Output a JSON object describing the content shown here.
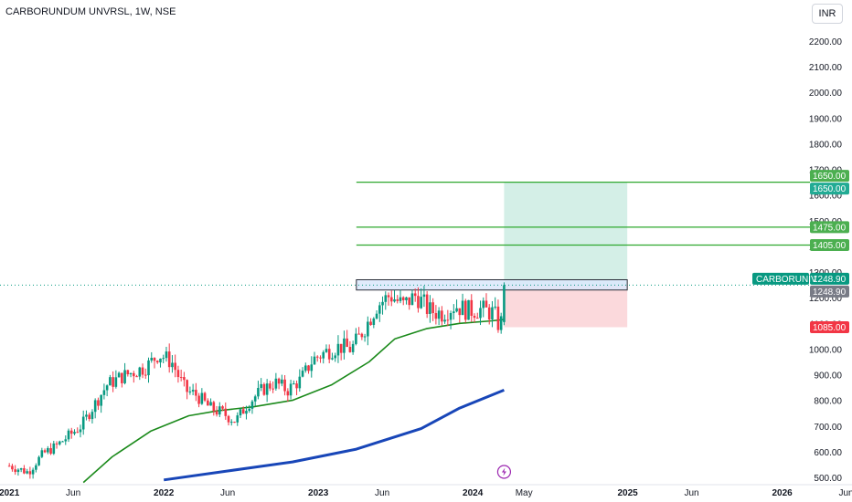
{
  "header": {
    "title": "CARBORUNDUM UNVRSL, 1W, NSE",
    "currency": "INR"
  },
  "chart_data": {
    "type": "candlestick",
    "symbol_tag": "CARBORUNIV",
    "y_axis": {
      "ticks": [
        500,
        600,
        700,
        800,
        900,
        1000,
        1100,
        1200,
        1300,
        1400,
        1500,
        1600,
        1700,
        1800,
        1900,
        2000,
        2100,
        2200
      ],
      "ylim": [
        480,
        2260
      ]
    },
    "x_axis": {
      "ticks": [
        {
          "date": "2021-01-01",
          "label": "2021"
        },
        {
          "date": "2021-06-01",
          "label": "Jun"
        },
        {
          "date": "2022-01-01",
          "label": "2022"
        },
        {
          "date": "2022-06-01",
          "label": "Jun"
        },
        {
          "date": "2023-01-01",
          "label": "2023"
        },
        {
          "date": "2023-06-01",
          "label": "Jun"
        },
        {
          "date": "2024-01-01",
          "label": "2024"
        },
        {
          "date": "2024-05-01",
          "label": "May"
        },
        {
          "date": "2025-01-01",
          "label": "2025"
        },
        {
          "date": "2025-06-01",
          "label": "Jun"
        },
        {
          "date": "2026-01-01",
          "label": "2026"
        },
        {
          "date": "2026-06-01",
          "label": "Jun"
        }
      ],
      "xlim": [
        "2020-12-10",
        "2026-06-15"
      ]
    },
    "price_path": [
      [
        "2021-01-01",
        545
      ],
      [
        "2021-02-15",
        520
      ],
      [
        "2021-03-20",
        590
      ],
      [
        "2021-04-20",
        620
      ],
      [
        "2021-05-20",
        660
      ],
      [
        "2021-06-20",
        700
      ],
      [
        "2021-07-20",
        780
      ],
      [
        "2021-08-20",
        860
      ],
      [
        "2021-09-20",
        890
      ],
      [
        "2021-10-20",
        910
      ],
      [
        "2021-11-20",
        930
      ],
      [
        "2021-12-20",
        980
      ],
      [
        "2022-01-20",
        950
      ],
      [
        "2022-02-20",
        840
      ],
      [
        "2022-03-20",
        820
      ],
      [
        "2022-04-20",
        770
      ],
      [
        "2022-05-20",
        750
      ],
      [
        "2022-06-20",
        720
      ],
      [
        "2022-07-20",
        790
      ],
      [
        "2022-08-20",
        840
      ],
      [
        "2022-09-20",
        870
      ],
      [
        "2022-10-20",
        840
      ],
      [
        "2022-11-20",
        880
      ],
      [
        "2022-12-20",
        960
      ],
      [
        "2023-01-20",
        990
      ],
      [
        "2023-02-20",
        1010
      ],
      [
        "2023-03-20",
        1000
      ],
      [
        "2023-04-20",
        1080
      ],
      [
        "2023-05-20",
        1170
      ],
      [
        "2023-06-20",
        1210
      ],
      [
        "2023-07-20",
        1170
      ],
      [
        "2023-08-20",
        1210
      ],
      [
        "2023-09-20",
        1150
      ],
      [
        "2023-10-20",
        1140
      ],
      [
        "2023-11-20",
        1170
      ],
      [
        "2023-12-20",
        1150
      ],
      [
        "2024-01-20",
        1155
      ],
      [
        "2024-02-20",
        1140
      ],
      [
        "2024-03-01",
        1100
      ],
      [
        "2024-03-08",
        1105
      ],
      [
        "2024-03-15",
        1248.9
      ]
    ],
    "ma_green": [
      [
        "2021-06-25",
        480
      ],
      [
        "2021-09-01",
        580
      ],
      [
        "2021-12-01",
        680
      ],
      [
        "2022-03-01",
        740
      ],
      [
        "2022-05-10",
        760
      ],
      [
        "2022-08-01",
        775
      ],
      [
        "2022-11-01",
        800
      ],
      [
        "2023-02-01",
        860
      ],
      [
        "2023-05-01",
        950
      ],
      [
        "2023-07-01",
        1040
      ],
      [
        "2023-09-15",
        1080
      ],
      [
        "2023-12-01",
        1100
      ],
      [
        "2024-02-15",
        1110
      ],
      [
        "2024-03-15",
        1115
      ]
    ],
    "ma_blue": [
      [
        "2022-01-01",
        490
      ],
      [
        "2022-06-01",
        525
      ],
      [
        "2022-11-01",
        560
      ],
      [
        "2023-04-01",
        610
      ],
      [
        "2023-09-01",
        690
      ],
      [
        "2023-12-01",
        770
      ],
      [
        "2024-03-15",
        840
      ]
    ],
    "resistance_zone": {
      "from": "2023-04-01",
      "to": "2024-12-31",
      "low": 1230,
      "high": 1270
    },
    "horizontal_lines": [
      {
        "price": 1650,
        "from": "2023-04-01"
      },
      {
        "price": 1475,
        "from": "2023-04-01"
      },
      {
        "price": 1405,
        "from": "2023-04-01"
      }
    ],
    "position": {
      "from": "2024-03-15",
      "to": "2024-12-31",
      "entry": 1248.9,
      "target": 1650,
      "stop": 1085
    },
    "price_labels": [
      {
        "text": "1650.00",
        "price": 1650,
        "color": "#4caf50",
        "slot": "upper"
      },
      {
        "text": "1650.00",
        "price": 1650,
        "color": "#22ab94",
        "slot": "lower"
      },
      {
        "text": "1475.00",
        "price": 1475,
        "color": "#4caf50",
        "slot": "mid"
      },
      {
        "text": "1405.00",
        "price": 1405,
        "color": "#4caf50",
        "slot": "mid"
      },
      {
        "text": "1248.90",
        "price": 1248.9,
        "color": "#089981",
        "slot": "upper"
      },
      {
        "text": "1248.90",
        "price": 1248.9,
        "color": "#787b86",
        "slot": "lower"
      },
      {
        "text": "1085.00",
        "price": 1085,
        "color": "#f23645",
        "slot": "mid"
      }
    ],
    "events": [
      {
        "date": "2024-03-15",
        "icon": "lightning-icon"
      }
    ],
    "colors": {
      "up": "#089981",
      "down": "#f23645",
      "ma_green": "#1b8a1b",
      "ma_blue": "#1846b8",
      "line": "#2fa82f",
      "zone_fill": "#dbe7fb",
      "zone_stroke": "#2a2e39",
      "target_fill": "#d4efe7",
      "stop_fill": "#fbd9dc",
      "event": "#9c27b0"
    }
  }
}
